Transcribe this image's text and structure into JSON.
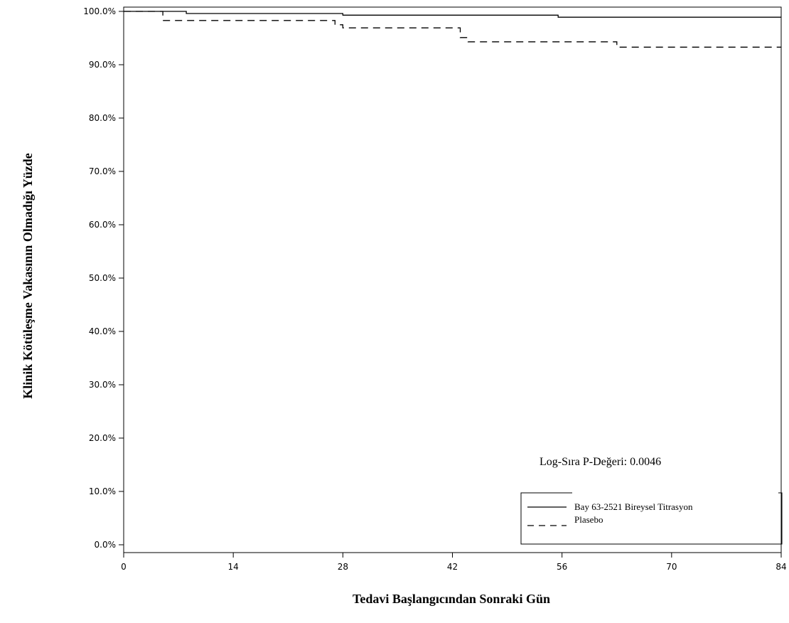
{
  "chart_data": {
    "type": "line",
    "title": "",
    "xlabel": "Tedavi Başlangıcından Sonraki Gün",
    "ylabel": "Klinik Kötüleşme Vakasının Olmadığı Yüzde",
    "xlim": [
      0,
      84
    ],
    "ylim": [
      0,
      100
    ],
    "x_ticks": [
      0,
      14,
      28,
      42,
      56,
      70,
      84
    ],
    "y_ticks": [
      0,
      10,
      20,
      30,
      40,
      50,
      60,
      70,
      80,
      90,
      100
    ],
    "y_tick_labels": [
      "0.0%",
      "10.0%",
      "20.0%",
      "30.0%",
      "40.0%",
      "50.0%",
      "60.0%",
      "70.0%",
      "80.0%",
      "90.0%",
      "100.0%"
    ],
    "x_tick_labels": [
      "0",
      "14",
      "28",
      "42",
      "56",
      "70",
      "84"
    ],
    "grid": false,
    "legend_position": "bottom-right",
    "series": [
      {
        "name": "Bay 63-2521 Bireysel Titrasyon",
        "style": "solid",
        "step_x": [
          0,
          8,
          28,
          55.5,
          84
        ],
        "step_y": [
          100,
          99.6,
          99.3,
          98.9,
          98.9
        ]
      },
      {
        "name": "Plasebo",
        "style": "dashed",
        "step_x": [
          0,
          5,
          27,
          28,
          43,
          44,
          63,
          84
        ],
        "step_y": [
          100,
          98.3,
          97.5,
          96.9,
          95.1,
          94.3,
          93.3,
          93.3
        ]
      }
    ],
    "annotations": [
      {
        "text": "Log-Sıra P-Değeri: 0.0046"
      }
    ]
  }
}
